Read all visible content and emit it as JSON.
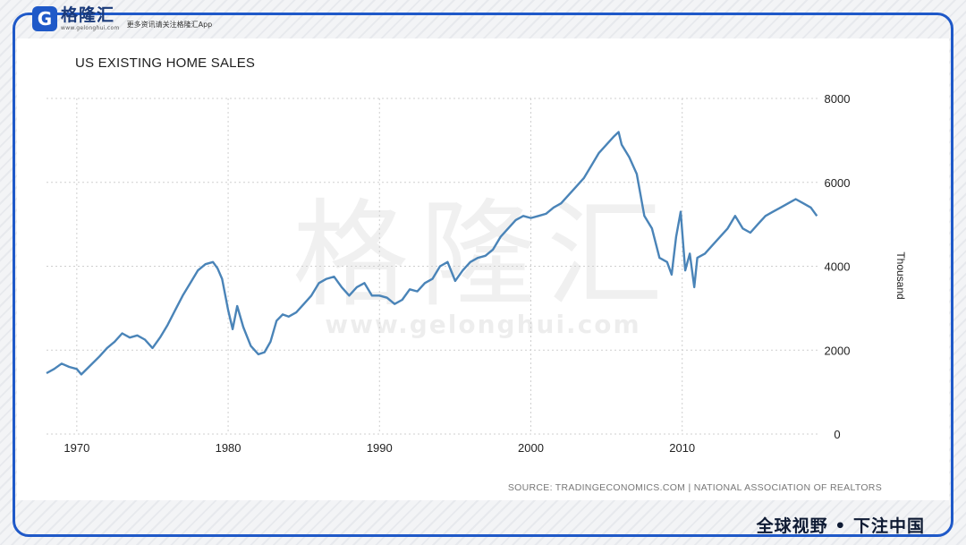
{
  "brand": {
    "logo_letter": "G",
    "name": "格隆汇",
    "url": "www.gelonghui.com",
    "tagline": "更多资讯请关注格隆汇App",
    "slogan": "全球视野 • 下注中国",
    "accent_color": "#1f59c8"
  },
  "chart_data": {
    "type": "line",
    "title": "US EXISTING HOME SALES",
    "xlabel": "",
    "ylabel": "Thousand",
    "source": "SOURCE: TRADINGECONOMICS.COM | NATIONAL ASSOCIATION OF REALTORS",
    "watermark_cn": "格隆汇",
    "watermark_url": "www.gelonghui.com",
    "xlim": [
      1968,
      2019
    ],
    "ylim": [
      0,
      8000
    ],
    "x_ticks": [
      1970,
      1980,
      1990,
      2000,
      2010
    ],
    "y_ticks": [
      0,
      2000,
      4000,
      6000,
      8000
    ],
    "y_axis_side": "right",
    "grid": true,
    "line_color": "#4a84b8",
    "series": [
      {
        "x": [
          1968.0,
          1968.5,
          1969.0,
          1969.5,
          1970.0,
          1970.3,
          1970.8,
          1971.5,
          1972.0,
          1972.5,
          1973.0,
          1973.5,
          1974.0,
          1974.5,
          1975.0,
          1975.5,
          1976.0,
          1976.5,
          1977.0,
          1977.5,
          1978.0,
          1978.5,
          1979.0,
          1979.3,
          1979.6,
          1980.0,
          1980.3,
          1980.6,
          1981.0,
          1981.5,
          1982.0,
          1982.4,
          1982.8,
          1983.2,
          1983.6,
          1984.0,
          1984.5,
          1985.0,
          1985.5,
          1986.0,
          1986.5,
          1987.0,
          1987.5,
          1988.0,
          1988.5,
          1989.0,
          1989.5,
          1990.0,
          1990.5,
          1991.0,
          1991.5,
          1992.0,
          1992.5,
          1993.0,
          1993.5,
          1994.0,
          1994.5,
          1995.0,
          1995.5,
          1996.0,
          1996.5,
          1997.0,
          1997.5,
          1998.0,
          1998.5,
          1999.0,
          1999.5,
          2000.0,
          2000.5,
          2001.0,
          2001.5,
          2002.0,
          2002.5,
          2003.0,
          2003.5,
          2004.0,
          2004.5,
          2005.0,
          2005.5,
          2005.8,
          2006.0,
          2006.5,
          2007.0,
          2007.5,
          2008.0,
          2008.5,
          2009.0,
          2009.3,
          2009.6,
          2009.9,
          2010.2,
          2010.5,
          2010.8,
          2011.0,
          2011.5,
          2012.0,
          2012.5,
          2013.0,
          2013.5,
          2014.0,
          2014.5,
          2015.0,
          2015.5,
          2016.0,
          2016.5,
          2017.0,
          2017.5,
          2018.0,
          2018.5,
          2018.9
        ],
        "y": [
          1450,
          1550,
          1680,
          1600,
          1550,
          1420,
          1600,
          1850,
          2050,
          2200,
          2400,
          2300,
          2350,
          2250,
          2050,
          2300,
          2600,
          2950,
          3300,
          3600,
          3900,
          4050,
          4100,
          3950,
          3700,
          2950,
          2500,
          3050,
          2550,
          2100,
          1900,
          1950,
          2200,
          2700,
          2850,
          2800,
          2900,
          3100,
          3300,
          3600,
          3700,
          3750,
          3500,
          3300,
          3500,
          3600,
          3300,
          3300,
          3250,
          3100,
          3200,
          3450,
          3400,
          3600,
          3700,
          4000,
          4100,
          3650,
          3900,
          4100,
          4200,
          4250,
          4400,
          4700,
          4900,
          5100,
          5200,
          5150,
          5200,
          5250,
          5400,
          5500,
          5700,
          5900,
          6100,
          6400,
          6700,
          6900,
          7100,
          7200,
          6900,
          6600,
          6200,
          5200,
          4900,
          4200,
          4100,
          3800,
          4700,
          5300,
          3900,
          4300,
          3500,
          4200,
          4300,
          4500,
          4700,
          4900,
          5200,
          4900,
          4800,
          5000,
          5200,
          5300,
          5400,
          5500,
          5600,
          5500,
          5400,
          5200
        ]
      }
    ]
  }
}
